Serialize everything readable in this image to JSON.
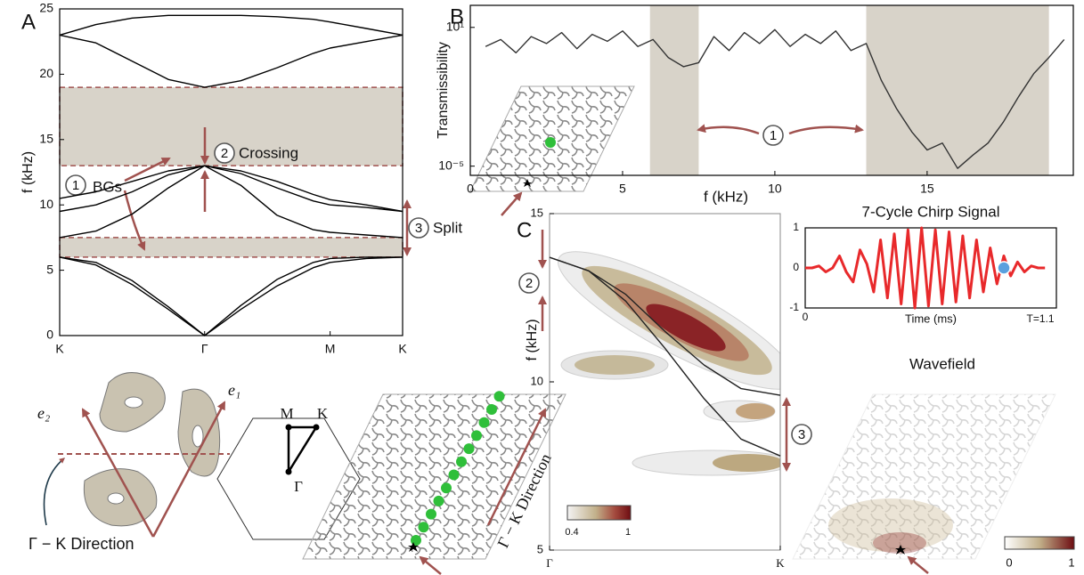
{
  "chart_data": [
    {
      "type": "line",
      "y_label": "f (kHz)",
      "x": [
        0,
        0.25,
        0.5,
        0.75,
        1,
        1.25,
        1.5,
        1.75,
        1.866,
        2.116,
        2.366
      ],
      "series": [
        {
          "color": "#000000",
          "values": [
            6,
            5.4,
            3.9,
            2,
            0,
            2,
            3.8,
            5.2,
            5.6,
            5.9,
            6
          ]
        },
        {
          "color": "#000000",
          "values": [
            6,
            5.6,
            4.2,
            2.2,
            0,
            2.3,
            4.3,
            5.6,
            5.9,
            6,
            6
          ]
        },
        {
          "color": "#000000",
          "values": [
            7.5,
            8,
            9.3,
            11.3,
            13,
            11.5,
            9.2,
            8.1,
            7.9,
            7.7,
            7.5
          ]
        },
        {
          "color": "#000000",
          "values": [
            9.5,
            10,
            11,
            12.3,
            13,
            12.4,
            11.3,
            10.3,
            10,
            9.8,
            9.5
          ]
        },
        {
          "color": "#000000",
          "values": [
            10.5,
            11,
            11.8,
            12.6,
            13,
            12.6,
            11.8,
            10.8,
            10.4,
            10,
            9.5
          ]
        },
        {
          "color": "#000000",
          "values": [
            23,
            22.4,
            21,
            19.6,
            19,
            19.5,
            20.5,
            21.6,
            22,
            22.5,
            23
          ]
        },
        {
          "color": "#000000",
          "values": [
            23,
            23.8,
            24.3,
            24.5,
            24.5,
            24.5,
            24.4,
            24.2,
            24,
            23.5,
            23
          ]
        }
      ],
      "bandgaps": [
        [
          13,
          19
        ],
        [
          6,
          7.5
        ]
      ],
      "xlim": [
        0,
        2.366
      ],
      "ylim": [
        0,
        25
      ],
      "xticks": [
        {
          "value": 0,
          "label": "K"
        },
        {
          "value": 1,
          "label": "Γ"
        },
        {
          "value": 1.866,
          "label": "M"
        },
        {
          "value": 2.366,
          "label": "K"
        }
      ],
      "yticks": [
        0,
        5,
        10,
        15,
        20,
        25
      ]
    },
    {
      "type": "line",
      "y_label": "Transmissibility",
      "x_label": "f (kHz)",
      "log_y": true,
      "x": [
        0.5,
        1,
        1.5,
        2,
        2.5,
        3,
        3.5,
        4,
        4.5,
        5,
        5.5,
        6,
        6.5,
        7,
        7.5,
        8,
        8.5,
        9,
        9.5,
        10,
        10.5,
        11,
        11.5,
        12,
        12.5,
        13,
        13.5,
        14,
        14.5,
        15,
        15.5,
        16,
        16.5,
        17,
        17.5,
        18,
        18.5,
        19,
        19.5
      ],
      "series": [
        {
          "color": "#333333",
          "values": [
            1.5,
            3,
            0.8,
            4,
            2,
            6,
            1.2,
            5,
            2.5,
            7,
            1.5,
            3,
            0.5,
            0.2,
            0.3,
            4,
            1,
            6,
            2,
            8,
            1.5,
            5,
            2,
            7,
            1,
            2,
            0.05,
            0.003,
            0.0003,
            5e-05,
            0.0001,
            8e-06,
            3e-05,
            0.0001,
            0.0008,
            0.01,
            0.1,
            0.5,
            3
          ]
        }
      ],
      "bandgaps": [
        [
          5.9,
          7.5
        ],
        [
          13,
          19
        ]
      ],
      "xlim": [
        0,
        19.8
      ],
      "ylim": [
        4e-06,
        90
      ],
      "xticks": [
        0,
        5,
        10,
        15
      ],
      "yticks": [
        {
          "value": 10,
          "label": "10¹"
        },
        {
          "value": 1e-05,
          "label": "10⁻⁵"
        }
      ]
    },
    {
      "type": "line",
      "title": "7-Cycle Chirp Signal",
      "x_label": "Time (ms)",
      "annotation": "T=1.1",
      "x": [
        0,
        0.03,
        0.06,
        0.09,
        0.12,
        0.15,
        0.18,
        0.21,
        0.24,
        0.27,
        0.3,
        0.33,
        0.36,
        0.39,
        0.42,
        0.45,
        0.48,
        0.51,
        0.54,
        0.57,
        0.6,
        0.63,
        0.66,
        0.69,
        0.72,
        0.75,
        0.78,
        0.81,
        0.84,
        0.87,
        0.9,
        0.93,
        0.96,
        0.99,
        1.02,
        1.05
      ],
      "series": [
        {
          "color": "#e8292b",
          "values": [
            0,
            0,
            0.05,
            -0.1,
            0,
            0.3,
            -0.1,
            -0.35,
            0.45,
            0.1,
            -0.6,
            0.7,
            -0.75,
            0.85,
            -0.9,
            0.95,
            -1,
            1,
            -0.95,
            0.95,
            -0.9,
            0.9,
            -0.85,
            0.8,
            -0.75,
            0.7,
            -0.6,
            0.5,
            -0.4,
            0.3,
            -0.2,
            0.15,
            -0.1,
            0.05,
            0,
            0
          ]
        }
      ],
      "marker": {
        "x": 0.87,
        "y": 0
      },
      "xlim": [
        0,
        1.1
      ],
      "ylim": [
        -1,
        1
      ],
      "xticks": [
        0
      ],
      "yticks": [
        -1,
        0,
        1
      ]
    },
    {
      "type": "line",
      "y_label": "f (kHz)",
      "x": [
        0,
        0.17,
        0.33,
        0.5,
        0.67,
        0.83,
        1
      ],
      "series": [
        {
          "color": "#222222",
          "values": [
            13.7,
            13.3,
            12.6,
            11.5,
            10.5,
            9.8,
            9.6
          ]
        },
        {
          "color": "#222222",
          "values": [
            13.7,
            13.3,
            12.4,
            11,
            9.5,
            8.3,
            7.8
          ]
        }
      ],
      "xlim": [
        0,
        1
      ],
      "ylim": [
        5,
        15
      ],
      "xticks": [
        {
          "value": 0,
          "label": "Γ"
        },
        {
          "value": 1,
          "label": "K"
        }
      ],
      "yticks": [
        5,
        10,
        15
      ]
    }
  ],
  "figure": {
    "panels": [
      "A",
      "B",
      "C"
    ],
    "circled": [
      "1",
      "2",
      "3",
      "1",
      "2",
      "3"
    ],
    "bgs": "BGs",
    "crossing": "Crossing",
    "split": "Split",
    "e2": "e₂",
    "e1": "e₁",
    "direction_a": "Γ − K Direction",
    "direction_b": "Γ − K Direction",
    "hex_m": "M",
    "hex_k": "K",
    "hex_gamma": "Γ",
    "wavefield": "Wavefield",
    "colorbar_c": [
      "0.4",
      "1"
    ],
    "colorbar_w": [
      "0",
      "1"
    ]
  }
}
